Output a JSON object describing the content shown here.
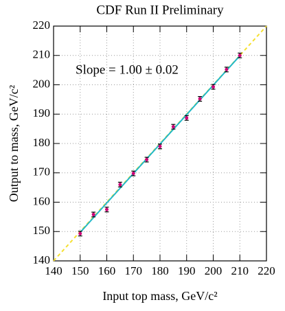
{
  "chart_data": {
    "type": "scatter",
    "title": "CDF Run II Preliminary",
    "annotation": "Slope = 1.00 ± 0.02",
    "x_label": "Input top mass, GeV/c²",
    "y_label": "Output to mass, GeV/c²",
    "x": [
      150,
      155,
      160,
      165,
      170,
      175,
      180,
      185,
      190,
      195,
      200,
      205,
      210
    ],
    "values": [
      149.3,
      155.8,
      157.5,
      166,
      169.8,
      174.5,
      179,
      185.7,
      188.7,
      195.2,
      199.3,
      205.2,
      210
    ],
    "errors": [
      0.8,
      0.8,
      0.8,
      0.8,
      0.8,
      0.8,
      0.8,
      0.8,
      0.8,
      0.8,
      0.8,
      0.8,
      0.8
    ],
    "color": "#cc0077",
    "fit_line": {
      "x": [
        150,
        210
      ],
      "values": [
        149.7,
        209.9
      ],
      "color": "#22b8c8"
    },
    "diagonal": {
      "x": [
        140,
        220
      ],
      "values": [
        140,
        220
      ],
      "color": "#f5e030"
    },
    "xlim": [
      140,
      220
    ],
    "ylim": [
      140,
      220
    ],
    "xticks": [
      140,
      150,
      160,
      170,
      180,
      190,
      200,
      210,
      220
    ],
    "yticks": [
      140,
      150,
      160,
      170,
      180,
      190,
      200,
      210,
      220
    ],
    "grid": true
  }
}
